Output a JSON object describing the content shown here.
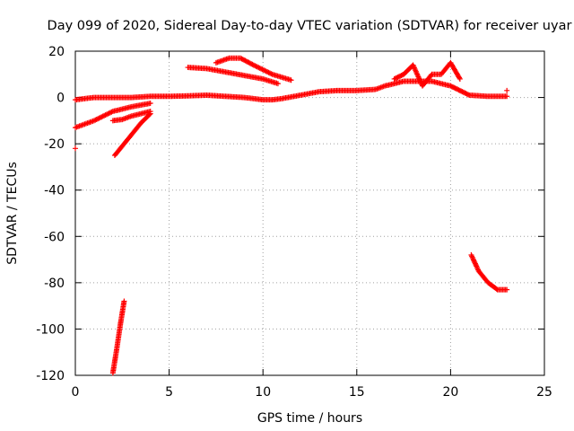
{
  "chart_data": {
    "type": "scatter",
    "title": "Day 099 of 2020, Sidereal Day-to-day VTEC variation (SDTVAR) for receiver uyar",
    "xlabel": "GPS time / hours",
    "ylabel": "SDTVAR / TECUs",
    "xlim": [
      0,
      25
    ],
    "ylim": [
      -120,
      20
    ],
    "xticks": [
      0,
      5,
      10,
      15,
      20,
      25
    ],
    "yticks": [
      -120,
      -100,
      -80,
      -60,
      -40,
      -20,
      0,
      20
    ],
    "grid": true,
    "marker": "+",
    "color": "#ff0000",
    "series": [
      {
        "name": "main-band",
        "points": [
          [
            0,
            -1
          ],
          [
            1,
            0
          ],
          [
            2,
            0
          ],
          [
            3,
            0
          ],
          [
            4,
            0.5
          ],
          [
            5,
            0.5
          ],
          [
            6,
            0.7
          ],
          [
            7,
            1
          ],
          [
            8,
            0.5
          ],
          [
            9,
            0
          ],
          [
            10,
            -1
          ],
          [
            10.5,
            -1
          ],
          [
            11,
            -0.5
          ],
          [
            12,
            1
          ],
          [
            13,
            2.5
          ],
          [
            14,
            3
          ],
          [
            15,
            3
          ],
          [
            16,
            3.5
          ],
          [
            16.5,
            5
          ],
          [
            17,
            6
          ],
          [
            17.5,
            7
          ],
          [
            18,
            7
          ],
          [
            19,
            7
          ],
          [
            20,
            5
          ],
          [
            20.5,
            3
          ],
          [
            21,
            1
          ],
          [
            22,
            0.5
          ],
          [
            23,
            0.5
          ]
        ]
      },
      {
        "name": "arc-7-11",
        "points": [
          [
            7.5,
            15
          ],
          [
            8.2,
            17
          ],
          [
            8.8,
            17
          ],
          [
            9.5,
            14
          ],
          [
            10.5,
            10
          ],
          [
            11.5,
            7.5
          ]
        ]
      },
      {
        "name": "line-6-11",
        "points": [
          [
            6,
            13
          ],
          [
            7,
            12.5
          ],
          [
            8,
            11
          ],
          [
            9,
            9.5
          ],
          [
            10,
            8
          ],
          [
            10.8,
            6
          ]
        ]
      },
      {
        "name": "line-0-4",
        "points": [
          [
            0,
            -13
          ],
          [
            1,
            -10
          ],
          [
            2,
            -6
          ],
          [
            3,
            -4
          ],
          [
            4,
            -2.5
          ]
        ]
      },
      {
        "name": "mid-2-3",
        "points": [
          [
            2,
            -10
          ],
          [
            2.5,
            -9.5
          ],
          [
            3,
            -8
          ],
          [
            3.5,
            -7
          ],
          [
            4,
            -6
          ]
        ]
      },
      {
        "name": "diag-2-4",
        "points": [
          [
            2.1,
            -25
          ],
          [
            2.5,
            -21
          ],
          [
            3,
            -16
          ],
          [
            3.5,
            -11
          ],
          [
            4,
            -7
          ]
        ]
      },
      {
        "name": "spikes-17-21",
        "points": [
          [
            17,
            8
          ],
          [
            17.5,
            10
          ],
          [
            18,
            14
          ],
          [
            18.5,
            5
          ],
          [
            19,
            10
          ],
          [
            19.5,
            10
          ],
          [
            20,
            15
          ],
          [
            20.5,
            8
          ]
        ]
      },
      {
        "name": "drop-21-23",
        "points": [
          [
            21.1,
            -68
          ],
          [
            21.5,
            -75
          ],
          [
            22,
            -80
          ],
          [
            22.5,
            -83
          ],
          [
            23,
            -83
          ]
        ]
      },
      {
        "name": "steep-2-2.6",
        "points": [
          [
            2,
            -119
          ],
          [
            2.2,
            -109
          ],
          [
            2.4,
            -98
          ],
          [
            2.6,
            -88
          ]
        ]
      },
      {
        "name": "outliers",
        "points": [
          [
            0,
            -22
          ],
          [
            23,
            3
          ]
        ]
      }
    ]
  }
}
